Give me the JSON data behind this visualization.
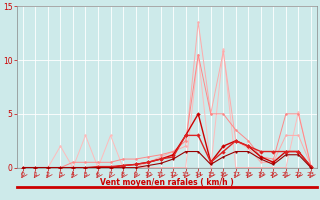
{
  "x": [
    0,
    1,
    2,
    3,
    4,
    5,
    6,
    7,
    8,
    9,
    10,
    11,
    12,
    13,
    14,
    15,
    16,
    17,
    18,
    19,
    20,
    21,
    22,
    23
  ],
  "series": {
    "light_pink_high": [
      0,
      0,
      0,
      2.0,
      0,
      3.0,
      0,
      3.0,
      0,
      0,
      0,
      0,
      0,
      0,
      10.5,
      0,
      11.0,
      0,
      0,
      0,
      0,
      0,
      5.2,
      0
    ],
    "light_pink_main": [
      0,
      0,
      0,
      0,
      0,
      0,
      0,
      0,
      0,
      0,
      0.5,
      1.0,
      1.5,
      2.0,
      13.5,
      5.0,
      10.8,
      2.5,
      1.8,
      0.5,
      0.5,
      3.0,
      3.0,
      0.2
    ],
    "med_pink": [
      0,
      0,
      0,
      0,
      0.5,
      0.5,
      0.5,
      0.5,
      0.8,
      0.8,
      1.0,
      1.2,
      1.5,
      2.5,
      10.5,
      5.0,
      5.0,
      3.5,
      2.5,
      1.0,
      0.8,
      5.0,
      5.0,
      0.2
    ],
    "dark_red_main": [
      0,
      0,
      0,
      0,
      0,
      0,
      0,
      0,
      0.2,
      0.3,
      0.5,
      0.8,
      1.2,
      3.0,
      5.0,
      0.5,
      2.0,
      2.5,
      2.0,
      1.0,
      0.5,
      1.5,
      1.5,
      0.1
    ],
    "dark_red2": [
      0,
      0,
      0,
      0,
      0,
      0,
      0.1,
      0.1,
      0.2,
      0.3,
      0.5,
      0.8,
      1.0,
      3.0,
      3.0,
      0.5,
      1.5,
      2.5,
      2.0,
      1.5,
      1.5,
      1.5,
      1.5,
      0.1
    ],
    "darkest_red": [
      0,
      0,
      0,
      0,
      0,
      0,
      0,
      0,
      0,
      0,
      0.2,
      0.4,
      0.8,
      1.5,
      1.5,
      0.3,
      1.0,
      1.5,
      1.5,
      0.8,
      0.3,
      1.2,
      1.2,
      0.0
    ]
  },
  "bg_color": "#cdeaea",
  "grid_color": "#b8d8d8",
  "xlabel": "Vent moyen/en rafales ( km/h )",
  "ylim": [
    0,
    15
  ],
  "xlim": [
    -0.5,
    23.5
  ],
  "yticks": [
    0,
    5,
    10,
    15
  ],
  "xticks": [
    0,
    1,
    2,
    3,
    4,
    5,
    6,
    7,
    8,
    9,
    10,
    11,
    12,
    13,
    14,
    15,
    16,
    17,
    18,
    19,
    20,
    21,
    22,
    23
  ],
  "line_colors": {
    "light_pink_high": "#ffbbbb",
    "light_pink_main": "#ffaaaa",
    "med_pink": "#ff8888",
    "dark_red_main": "#cc0000",
    "dark_red2": "#dd2222",
    "darkest_red": "#990000"
  },
  "marker_colors": {
    "light_pink_high": "#ffbbbb",
    "light_pink_main": "#ffaaaa",
    "med_pink": "#ff8888",
    "dark_red_main": "#cc0000",
    "dark_red2": "#dd2222",
    "darkest_red": "#990000"
  },
  "spine_color": "#888888",
  "tick_color": "#cc0000",
  "xlabel_color": "#cc0000",
  "arrow_color": "#cc2222",
  "bottom_line_color": "#cc0000"
}
